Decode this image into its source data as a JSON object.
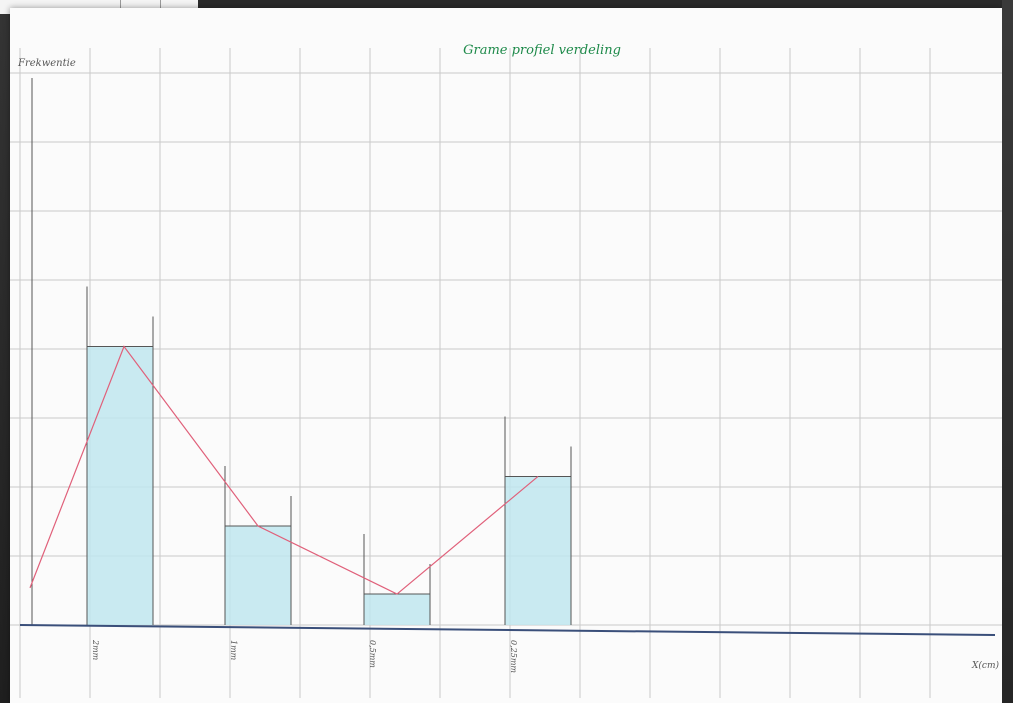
{
  "colors": {
    "grid": "#c9c9c9",
    "bar_fill": "#bfe6ee",
    "bar_stroke": "#555555",
    "line": "#e0607a",
    "title": "#1e8a4a",
    "axis": "#3a4f7a",
    "ink": "#555555"
  },
  "chart_data": {
    "type": "bar",
    "title": "Grame profiel verdeling",
    "ylabel": "Frekwentie",
    "xlabel": "X(cm)",
    "ylim": [
      0,
      9
    ],
    "grid": true,
    "categories": [
      "2mm",
      "1mm",
      "0,5mm",
      "0,25mm"
    ],
    "values": [
      4.5,
      1.6,
      0.5,
      2.4
    ],
    "line": {
      "name": "",
      "points": [
        {
          "x": 0.0,
          "y": 0.6
        },
        {
          "x": 1.0,
          "y": 4.5
        },
        {
          "x": 2.0,
          "y": 1.6
        },
        {
          "x": 3.0,
          "y": 0.5
        },
        {
          "x": 4.0,
          "y": 2.4
        }
      ]
    }
  }
}
